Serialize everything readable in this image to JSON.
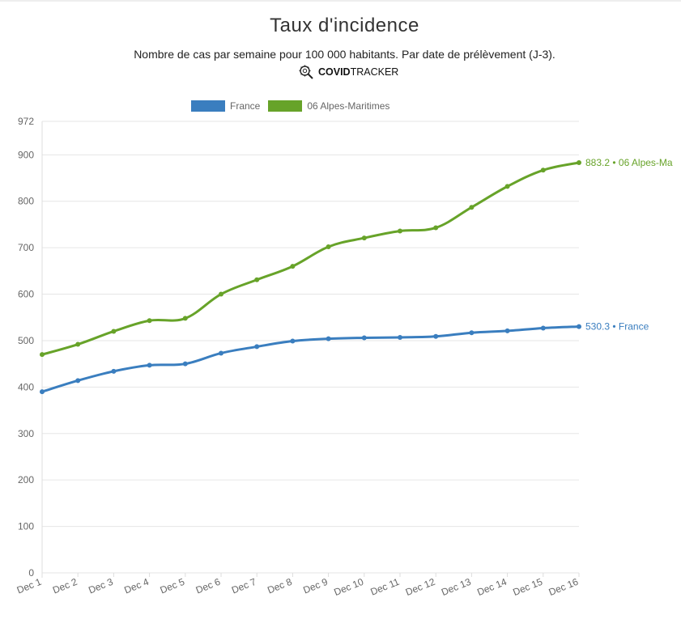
{
  "header": {
    "title": "Taux d'incidence",
    "subtitle": "Nombre de cas par semaine pour 100 000 habitants. Par date de prélèvement (J-3).",
    "brand_bold": "COVID",
    "brand_light": "TRACKER",
    "brand_icon": "virus-magnifier-icon"
  },
  "colors": {
    "france": "#3a7ebf",
    "alpes": "#67a329",
    "grid": "#e6e6e6",
    "tick_text": "#666666"
  },
  "chart_data": {
    "type": "line",
    "title": "Taux d'incidence",
    "subtitle": "Nombre de cas par semaine pour 100 000 habitants. Par date de prélèvement (J-3).",
    "x": [
      "Dec 1",
      "Dec 2",
      "Dec 3",
      "Dec 4",
      "Dec 5",
      "Dec 6",
      "Dec 7",
      "Dec 8",
      "Dec 9",
      "Dec 10",
      "Dec 11",
      "Dec 12",
      "Dec 13",
      "Dec 14",
      "Dec 15",
      "Dec 16"
    ],
    "ylim": [
      0,
      972
    ],
    "yticks": [
      0,
      100,
      200,
      300,
      400,
      500,
      600,
      700,
      800,
      900,
      972
    ],
    "grid": true,
    "legend_position": "top",
    "series": [
      {
        "name": "France",
        "color": "#3a7ebf",
        "values": [
          390,
          414,
          434,
          447,
          450,
          473,
          487,
          499,
          504,
          506,
          507,
          509,
          517,
          521,
          527,
          530.3
        ],
        "end_label": "530.3 • France"
      },
      {
        "name": "06 Alpes-Maritimes",
        "color": "#67a329",
        "values": [
          470,
          492,
          520,
          543,
          548,
          600,
          631,
          660,
          702,
          721,
          736,
          743,
          787,
          832,
          867,
          883.2
        ],
        "end_label": "883.2 • 06 Alpes-Ma"
      }
    ]
  }
}
